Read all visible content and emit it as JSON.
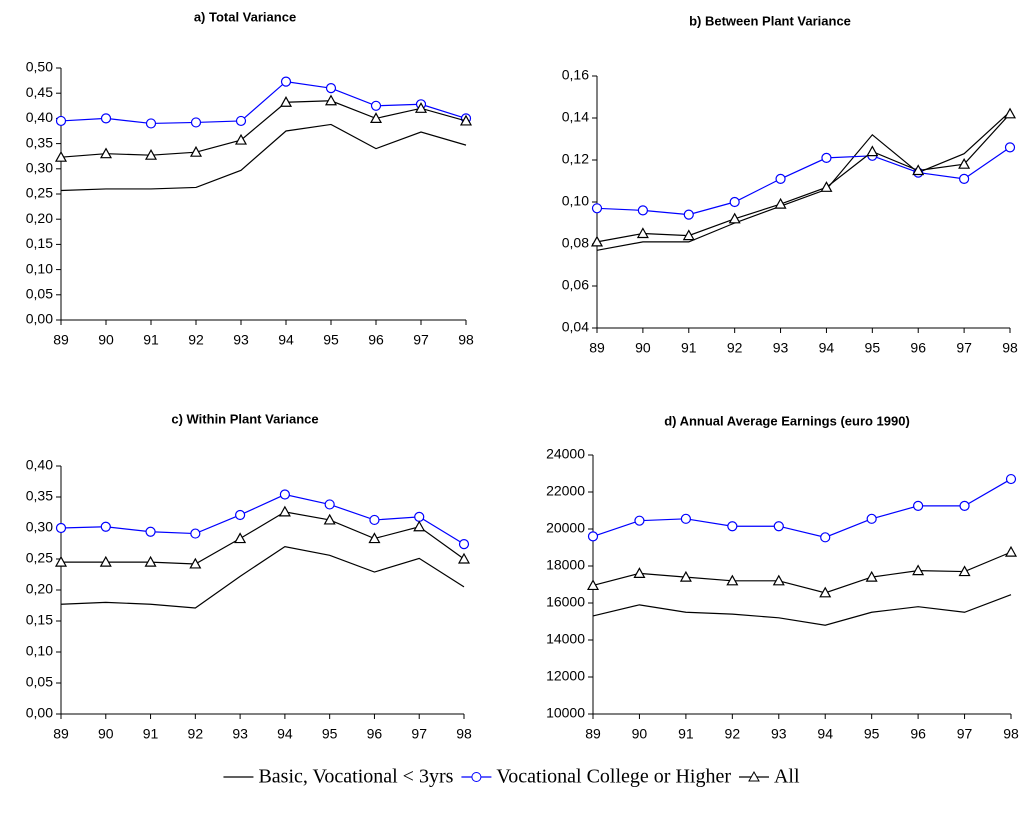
{
  "chart_data": [
    {
      "type": "line",
      "title": "a) Total Variance",
      "categories": [
        "89",
        "90",
        "91",
        "92",
        "93",
        "94",
        "95",
        "96",
        "97",
        "98"
      ],
      "ylim": [
        0,
        0.5
      ],
      "yticks": [
        {
          "value": 0,
          "label": "0,00"
        },
        {
          "value": 0.05,
          "label": "0,05"
        },
        {
          "value": 0.1,
          "label": "0,10"
        },
        {
          "value": 0.15,
          "label": "0,15"
        },
        {
          "value": 0.2,
          "label": "0,20"
        },
        {
          "value": 0.25,
          "label": "0,25"
        },
        {
          "value": 0.3,
          "label": "0,30"
        },
        {
          "value": 0.35,
          "label": "0,35"
        },
        {
          "value": 0.4,
          "label": "0,40"
        },
        {
          "value": 0.45,
          "label": "0,45"
        },
        {
          "value": 0.5,
          "label": "0,50"
        }
      ],
      "series": [
        {
          "name": "Basic, Vocational < 3yrs",
          "color": "#000000",
          "marker": "none",
          "values": [
            0.257,
            0.26,
            0.26,
            0.263,
            0.297,
            0.375,
            0.388,
            0.34,
            0.373,
            0.347
          ]
        },
        {
          "name": "Vocational College or Higher",
          "color": "#0000ff",
          "marker": "circle",
          "values": [
            0.395,
            0.4,
            0.39,
            0.392,
            0.395,
            0.473,
            0.46,
            0.425,
            0.428,
            0.4
          ]
        },
        {
          "name": "All",
          "color": "#000000",
          "marker": "triangle",
          "values": [
            0.323,
            0.33,
            0.327,
            0.333,
            0.357,
            0.432,
            0.435,
            0.4,
            0.42,
            0.395
          ]
        }
      ]
    },
    {
      "type": "line",
      "title": "b) Between Plant Variance",
      "categories": [
        "89",
        "90",
        "91",
        "92",
        "93",
        "94",
        "95",
        "96",
        "97",
        "98"
      ],
      "ylim": [
        0.04,
        0.16
      ],
      "yticks": [
        {
          "value": 0.04,
          "label": "0,04"
        },
        {
          "value": 0.06,
          "label": "0,06"
        },
        {
          "value": 0.08,
          "label": "0,08"
        },
        {
          "value": 0.1,
          "label": "0,10"
        },
        {
          "value": 0.12,
          "label": "0,12"
        },
        {
          "value": 0.14,
          "label": "0,14"
        },
        {
          "value": 0.16,
          "label": "0,16"
        }
      ],
      "series": [
        {
          "color": "#000000",
          "marker": "none",
          "values": [
            0.077,
            0.081,
            0.081,
            0.09,
            0.098,
            0.106,
            0.132,
            0.114,
            0.123,
            0.143
          ]
        },
        {
          "color": "#0000ff",
          "marker": "circle",
          "values": [
            0.097,
            0.096,
            0.094,
            0.1,
            0.111,
            0.121,
            0.122,
            0.114,
            0.111,
            0.126
          ]
        },
        {
          "color": "#000000",
          "marker": "triangle",
          "values": [
            0.081,
            0.085,
            0.084,
            0.092,
            0.099,
            0.107,
            0.124,
            0.115,
            0.118,
            0.142
          ]
        }
      ]
    },
    {
      "type": "line",
      "title": "c) Within Plant Variance",
      "categories": [
        "89",
        "90",
        "91",
        "92",
        "93",
        "94",
        "95",
        "96",
        "97",
        "98"
      ],
      "ylim": [
        0,
        0.4
      ],
      "yticks": [
        {
          "value": 0,
          "label": "0,00"
        },
        {
          "value": 0.05,
          "label": "0,05"
        },
        {
          "value": 0.1,
          "label": "0,10"
        },
        {
          "value": 0.15,
          "label": "0,15"
        },
        {
          "value": 0.2,
          "label": "0,20"
        },
        {
          "value": 0.25,
          "label": "0,25"
        },
        {
          "value": 0.3,
          "label": "0,30"
        },
        {
          "value": 0.35,
          "label": "0,35"
        },
        {
          "value": 0.4,
          "label": "0,40"
        }
      ],
      "series": [
        {
          "color": "#000000",
          "marker": "none",
          "values": [
            0.177,
            0.18,
            0.177,
            0.171,
            0.222,
            0.27,
            0.256,
            0.229,
            0.251,
            0.205
          ]
        },
        {
          "color": "#0000ff",
          "marker": "circle",
          "values": [
            0.3,
            0.302,
            0.294,
            0.291,
            0.321,
            0.354,
            0.338,
            0.313,
            0.318,
            0.274
          ]
        },
        {
          "color": "#000000",
          "marker": "triangle",
          "values": [
            0.245,
            0.245,
            0.245,
            0.242,
            0.283,
            0.326,
            0.313,
            0.283,
            0.302,
            0.25
          ]
        }
      ]
    },
    {
      "type": "line",
      "title": "d) Annual Average Earnings (euro 1990)",
      "categories": [
        "89",
        "90",
        "91",
        "92",
        "93",
        "94",
        "95",
        "96",
        "97",
        "98"
      ],
      "ylim": [
        10000,
        24000
      ],
      "yticks": [
        10000,
        12000,
        14000,
        16000,
        18000,
        20000,
        22000,
        24000
      ],
      "series": [
        {
          "color": "#000000",
          "marker": "none",
          "values": [
            15300,
            15900,
            15500,
            15400,
            15200,
            14800,
            15500,
            15800,
            15500,
            16450
          ]
        },
        {
          "color": "#0000ff",
          "marker": "circle",
          "values": [
            19600,
            20450,
            20550,
            20150,
            20150,
            19550,
            20550,
            21250,
            21250,
            22700
          ]
        },
        {
          "color": "#000000",
          "marker": "triangle",
          "values": [
            16950,
            17600,
            17400,
            17200,
            17200,
            16550,
            17400,
            17750,
            17700,
            18750
          ]
        }
      ]
    }
  ]
}
